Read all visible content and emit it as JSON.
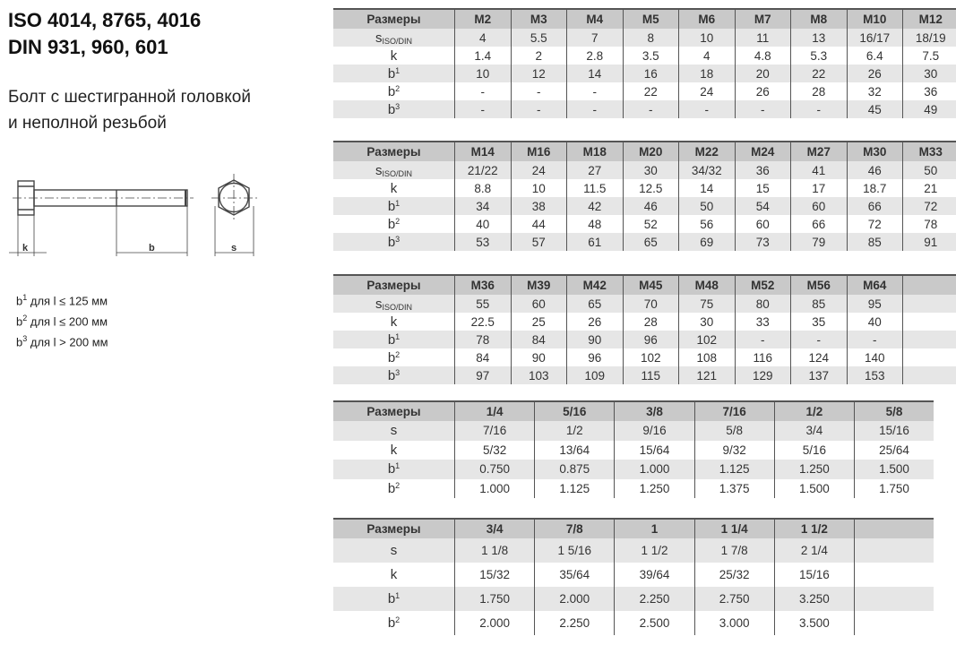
{
  "title": {
    "line1": "ISO 4014, 8765, 4016",
    "line2": "DIN 931, 960, 601"
  },
  "subtitle": {
    "line1": "Болт с шестигранной головкой",
    "line2": "и неполной резьбой"
  },
  "drawing": {
    "labels": {
      "k": "k",
      "b": "b",
      "s": "s"
    }
  },
  "notes": [
    {
      "sym": "b",
      "sup": "1",
      "text": " для l ≤ 125 мм"
    },
    {
      "sym": "b",
      "sup": "2",
      "text": " для l ≤ 200 мм"
    },
    {
      "sym": "b",
      "sup": "3",
      "text": " для l > 200 мм"
    }
  ],
  "tables": [
    {
      "header": "Размеры",
      "columns": [
        "M2",
        "M3",
        "M4",
        "M5",
        "M6",
        "M7",
        "M8",
        "M10",
        "M12"
      ],
      "rows": [
        {
          "label": "s",
          "sub": "ISO/DIN",
          "values": [
            "4",
            "5.5",
            "7",
            "8",
            "10",
            "11",
            "13",
            "16/17",
            "18/19"
          ]
        },
        {
          "label": "k",
          "values": [
            "1.4",
            "2",
            "2.8",
            "3.5",
            "4",
            "4.8",
            "5.3",
            "6.4",
            "7.5"
          ]
        },
        {
          "label": "b",
          "sup": "1",
          "values": [
            "10",
            "12",
            "14",
            "16",
            "18",
            "20",
            "22",
            "26",
            "30"
          ]
        },
        {
          "label": "b",
          "sup": "2",
          "values": [
            "-",
            "-",
            "-",
            "22",
            "24",
            "26",
            "28",
            "32",
            "36"
          ]
        },
        {
          "label": "b",
          "sup": "3",
          "values": [
            "-",
            "-",
            "-",
            "-",
            "-",
            "-",
            "-",
            "45",
            "49"
          ]
        }
      ]
    },
    {
      "header": "Размеры",
      "columns": [
        "M14",
        "M16",
        "M18",
        "M20",
        "M22",
        "M24",
        "M27",
        "M30",
        "M33"
      ],
      "rows": [
        {
          "label": "s",
          "sub": "ISO/DIN",
          "values": [
            "21/22",
            "24",
            "27",
            "30",
            "34/32",
            "36",
            "41",
            "46",
            "50"
          ]
        },
        {
          "label": "k",
          "values": [
            "8.8",
            "10",
            "11.5",
            "12.5",
            "14",
            "15",
            "17",
            "18.7",
            "21"
          ]
        },
        {
          "label": "b",
          "sup": "1",
          "values": [
            "34",
            "38",
            "42",
            "46",
            "50",
            "54",
            "60",
            "66",
            "72"
          ]
        },
        {
          "label": "b",
          "sup": "2",
          "values": [
            "40",
            "44",
            "48",
            "52",
            "56",
            "60",
            "66",
            "72",
            "78"
          ]
        },
        {
          "label": "b",
          "sup": "3",
          "values": [
            "53",
            "57",
            "61",
            "65",
            "69",
            "73",
            "79",
            "85",
            "91"
          ]
        }
      ]
    },
    {
      "header": "Размеры",
      "columns": [
        "M36",
        "M39",
        "M42",
        "M45",
        "M48",
        "M52",
        "M56",
        "M64",
        ""
      ],
      "rows": [
        {
          "label": "s",
          "sub": "ISO/DIN",
          "values": [
            "55",
            "60",
            "65",
            "70",
            "75",
            "80",
            "85",
            "95",
            ""
          ]
        },
        {
          "label": "k",
          "values": [
            "22.5",
            "25",
            "26",
            "28",
            "30",
            "33",
            "35",
            "40",
            ""
          ]
        },
        {
          "label": "b",
          "sup": "1",
          "values": [
            "78",
            "84",
            "90",
            "96",
            "102",
            "-",
            "-",
            "-",
            ""
          ]
        },
        {
          "label": "b",
          "sup": "2",
          "values": [
            "84",
            "90",
            "96",
            "102",
            "108",
            "116",
            "124",
            "140",
            ""
          ]
        },
        {
          "label": "b",
          "sup": "3",
          "values": [
            "97",
            "103",
            "109",
            "115",
            "121",
            "129",
            "137",
            "153",
            ""
          ]
        }
      ]
    },
    {
      "header": "Размеры",
      "columns": [
        "1/4",
        "5/16",
        "3/8",
        "7/16",
        "1/2",
        "5/8"
      ],
      "rows": [
        {
          "label": "s",
          "values": [
            "7/16",
            "1/2",
            "9/16",
            "5/8",
            "3/4",
            "15/16"
          ]
        },
        {
          "label": "k",
          "values": [
            "5/32",
            "13/64",
            "15/64",
            "9/32",
            "5/16",
            "25/64"
          ]
        },
        {
          "label": "b",
          "sup": "1",
          "values": [
            "0.750",
            "0.875",
            "1.000",
            "1.125",
            "1.250",
            "1.500"
          ]
        },
        {
          "label": "b",
          "sup": "2",
          "values": [
            "1.000",
            "1.125",
            "1.250",
            "1.375",
            "1.500",
            "1.750"
          ]
        }
      ]
    },
    {
      "header": "Размеры",
      "columns": [
        "3/4",
        "7/8",
        "1",
        "1 1/4",
        "1 1/2",
        ""
      ],
      "rows": [
        {
          "label": "s",
          "values": [
            "1 1/8",
            "1 5/16",
            "1 1/2",
            "1 7/8",
            "2 1/4",
            ""
          ]
        },
        {
          "label": "k",
          "values": [
            "15/32",
            "35/64",
            "39/64",
            "25/32",
            "15/16",
            ""
          ]
        },
        {
          "label": "b",
          "sup": "1",
          "values": [
            "1.750",
            "2.000",
            "2.250",
            "2.750",
            "3.250",
            ""
          ]
        },
        {
          "label": "b",
          "sup": "2",
          "values": [
            "2.000",
            "2.250",
            "2.500",
            "3.000",
            "3.500",
            ""
          ]
        }
      ]
    }
  ]
}
